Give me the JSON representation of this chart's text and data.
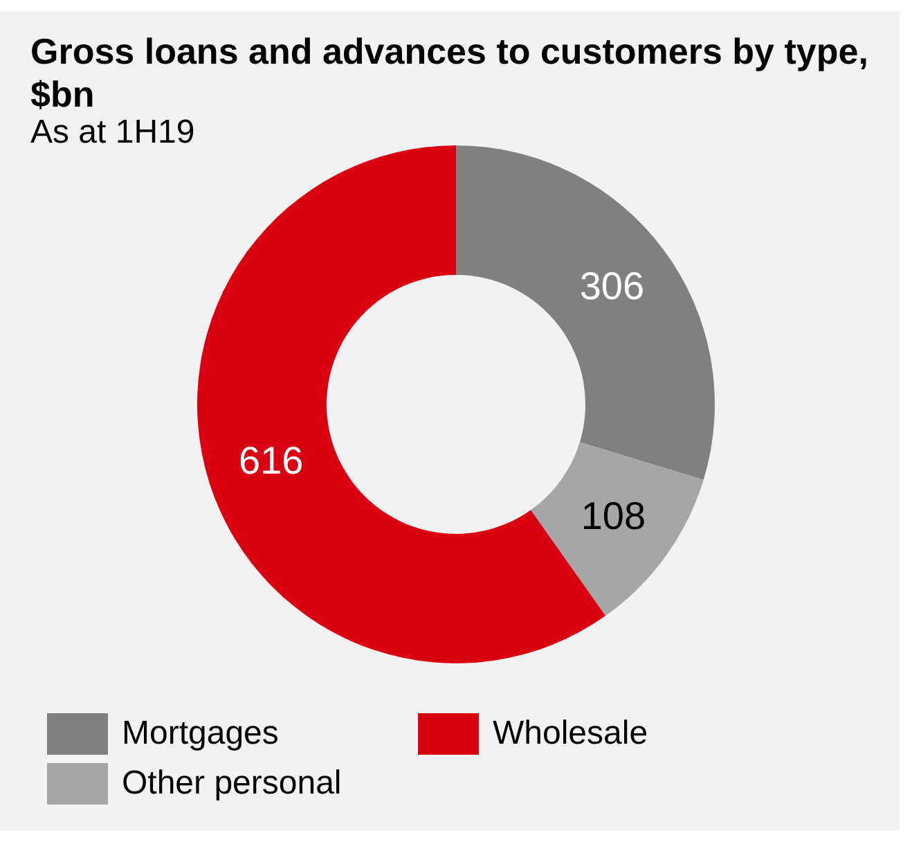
{
  "chart_data": {
    "type": "donut",
    "title": "Gross loans and advances to customers by type, $bn",
    "subtitle": "As at 1H19",
    "categories": [
      "Mortgages",
      "Other personal",
      "Wholesale"
    ],
    "values": [
      306,
      108,
      616
    ],
    "colors": [
      "#808080",
      "#a6a6a6",
      "#db0011"
    ],
    "data_labels": true,
    "legend": "bottom"
  }
}
